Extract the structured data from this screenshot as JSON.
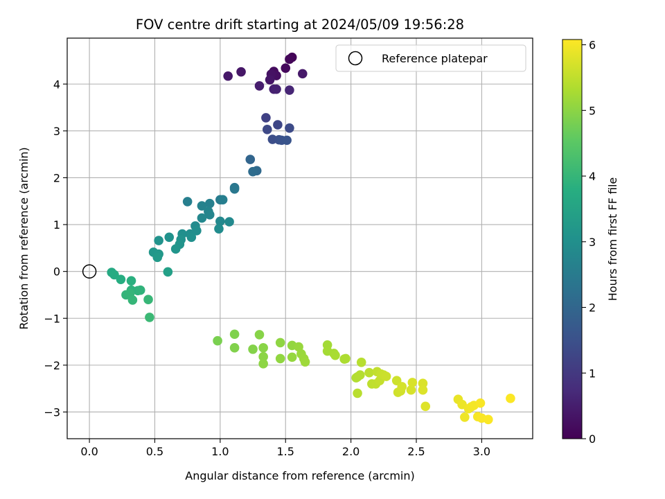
{
  "chart_data": {
    "type": "scatter",
    "title": "FOV centre drift starting at 2024/05/09 19:56:28",
    "xlabel": "Angular distance from reference (arcmin)",
    "ylabel": "Rotation from reference (arcmin)",
    "xlim": [
      -0.17,
      3.39
    ],
    "ylim": [
      -3.57,
      4.98
    ],
    "x_ticks": [
      0.0,
      0.5,
      1.0,
      1.5,
      2.0,
      2.5,
      3.0
    ],
    "x_tick_labels": [
      "0.0",
      "0.5",
      "1.0",
      "1.5",
      "2.0",
      "2.5",
      "3.0"
    ],
    "y_ticks": [
      -3,
      -2,
      -1,
      0,
      1,
      2,
      3,
      4
    ],
    "y_tick_labels": [
      "−3",
      "−2",
      "−1",
      "0",
      "1",
      "2",
      "3",
      "4"
    ],
    "grid": true,
    "colormap": "viridis",
    "colorbar": {
      "label": "Hours from first FF file",
      "range": [
        0,
        6.08
      ],
      "ticks": [
        0,
        1,
        2,
        3,
        4,
        5,
        6
      ],
      "tick_labels": [
        "0",
        "1",
        "2",
        "3",
        "4",
        "5",
        "6"
      ]
    },
    "legend": {
      "position": "top-right",
      "entries": [
        {
          "label": "Reference platepar",
          "marker": "open-circle"
        }
      ]
    },
    "reference_point": {
      "x": 0.0,
      "y": 0.0
    },
    "series": [
      {
        "points": [
          {
            "x": 1.55,
            "y": 4.57,
            "t": 0.05
          },
          {
            "x": 1.53,
            "y": 4.53,
            "t": 0.1
          },
          {
            "x": 1.5,
            "y": 4.34,
            "t": 0.15
          },
          {
            "x": 1.41,
            "y": 4.27,
            "t": 0.2
          },
          {
            "x": 1.43,
            "y": 4.18,
            "t": 0.25
          },
          {
            "x": 1.39,
            "y": 4.21,
            "t": 0.3
          },
          {
            "x": 1.38,
            "y": 4.09,
            "t": 0.35
          },
          {
            "x": 1.16,
            "y": 4.26,
            "t": 0.38
          },
          {
            "x": 1.06,
            "y": 4.17,
            "t": 0.4
          },
          {
            "x": 1.63,
            "y": 4.22,
            "t": 0.42
          },
          {
            "x": 1.3,
            "y": 3.96,
            "t": 0.5
          },
          {
            "x": 1.41,
            "y": 3.89,
            "t": 0.55
          },
          {
            "x": 1.43,
            "y": 3.89,
            "t": 0.58
          },
          {
            "x": 1.53,
            "y": 3.87,
            "t": 0.65
          },
          {
            "x": 1.35,
            "y": 3.28,
            "t": 1.2
          },
          {
            "x": 1.44,
            "y": 3.13,
            "t": 1.3
          },
          {
            "x": 1.36,
            "y": 3.03,
            "t": 1.35
          },
          {
            "x": 1.53,
            "y": 3.06,
            "t": 1.4
          },
          {
            "x": 1.4,
            "y": 2.82,
            "t": 1.45
          },
          {
            "x": 1.45,
            "y": 2.81,
            "t": 1.5
          },
          {
            "x": 1.47,
            "y": 2.8,
            "t": 1.55
          },
          {
            "x": 1.51,
            "y": 2.8,
            "t": 1.6
          },
          {
            "x": 1.23,
            "y": 2.39,
            "t": 2.0
          },
          {
            "x": 1.28,
            "y": 2.15,
            "t": 2.1
          },
          {
            "x": 1.25,
            "y": 2.13,
            "t": 2.15
          },
          {
            "x": 1.11,
            "y": 1.79,
            "t": 2.4
          },
          {
            "x": 1.11,
            "y": 1.76,
            "t": 2.45
          },
          {
            "x": 1.0,
            "y": 1.53,
            "t": 2.55
          },
          {
            "x": 1.02,
            "y": 1.53,
            "t": 2.6
          },
          {
            "x": 0.75,
            "y": 1.49,
            "t": 2.62
          },
          {
            "x": 0.92,
            "y": 1.45,
            "t": 2.65
          },
          {
            "x": 0.86,
            "y": 1.4,
            "t": 2.7
          },
          {
            "x": 0.91,
            "y": 1.28,
            "t": 2.75
          },
          {
            "x": 0.92,
            "y": 1.21,
            "t": 2.78
          },
          {
            "x": 0.86,
            "y": 1.14,
            "t": 2.82
          },
          {
            "x": 1.0,
            "y": 1.07,
            "t": 2.85
          },
          {
            "x": 1.07,
            "y": 1.06,
            "t": 2.88
          },
          {
            "x": 0.81,
            "y": 0.97,
            "t": 2.92
          },
          {
            "x": 0.99,
            "y": 0.91,
            "t": 2.95
          },
          {
            "x": 0.82,
            "y": 0.87,
            "t": 2.98
          },
          {
            "x": 0.77,
            "y": 0.8,
            "t": 3.0
          },
          {
            "x": 0.71,
            "y": 0.8,
            "t": 3.02
          },
          {
            "x": 0.78,
            "y": 0.73,
            "t": 3.05
          },
          {
            "x": 0.61,
            "y": 0.73,
            "t": 3.08
          },
          {
            "x": 0.7,
            "y": 0.68,
            "t": 3.1
          },
          {
            "x": 0.53,
            "y": 0.66,
            "t": 3.12
          },
          {
            "x": 0.69,
            "y": 0.58,
            "t": 3.15
          },
          {
            "x": 0.66,
            "y": 0.48,
            "t": 3.18
          },
          {
            "x": 0.49,
            "y": 0.41,
            "t": 3.22
          },
          {
            "x": 0.53,
            "y": 0.37,
            "t": 3.25
          },
          {
            "x": 0.52,
            "y": 0.3,
            "t": 3.3
          },
          {
            "x": 0.6,
            "y": -0.01,
            "t": 3.45
          },
          {
            "x": 0.17,
            "y": -0.02,
            "t": 3.7
          },
          {
            "x": 0.19,
            "y": -0.07,
            "t": 3.75
          },
          {
            "x": 0.24,
            "y": -0.17,
            "t": 3.8
          },
          {
            "x": 0.32,
            "y": -0.2,
            "t": 3.85
          },
          {
            "x": 0.32,
            "y": -0.4,
            "t": 3.9
          },
          {
            "x": 0.37,
            "y": -0.41,
            "t": 3.92
          },
          {
            "x": 0.39,
            "y": -0.4,
            "t": 3.95
          },
          {
            "x": 0.28,
            "y": -0.5,
            "t": 3.98
          },
          {
            "x": 0.31,
            "y": -0.47,
            "t": 4.0
          },
          {
            "x": 0.33,
            "y": -0.61,
            "t": 4.02
          },
          {
            "x": 0.45,
            "y": -0.6,
            "t": 4.05
          },
          {
            "x": 0.46,
            "y": -0.98,
            "t": 4.1
          },
          {
            "x": 0.98,
            "y": -1.48,
            "t": 4.85
          },
          {
            "x": 1.11,
            "y": -1.34,
            "t": 4.9
          },
          {
            "x": 1.11,
            "y": -1.63,
            "t": 4.92
          },
          {
            "x": 1.25,
            "y": -1.66,
            "t": 4.95
          },
          {
            "x": 1.3,
            "y": -1.35,
            "t": 4.98
          },
          {
            "x": 1.33,
            "y": -1.63,
            "t": 5.0
          },
          {
            "x": 1.33,
            "y": -1.82,
            "t": 5.02
          },
          {
            "x": 1.33,
            "y": -1.97,
            "t": 5.04
          },
          {
            "x": 1.46,
            "y": -1.52,
            "t": 5.06
          },
          {
            "x": 1.46,
            "y": -1.86,
            "t": 5.08
          },
          {
            "x": 1.55,
            "y": -1.58,
            "t": 5.1
          },
          {
            "x": 1.55,
            "y": -1.83,
            "t": 5.12
          },
          {
            "x": 1.6,
            "y": -1.61,
            "t": 5.14
          },
          {
            "x": 1.62,
            "y": -1.76,
            "t": 5.16
          },
          {
            "x": 1.64,
            "y": -1.86,
            "t": 5.18
          },
          {
            "x": 1.65,
            "y": -1.93,
            "t": 5.2
          },
          {
            "x": 1.82,
            "y": -1.57,
            "t": 5.25
          },
          {
            "x": 1.82,
            "y": -1.7,
            "t": 5.27
          },
          {
            "x": 1.87,
            "y": -1.75,
            "t": 5.29
          },
          {
            "x": 1.88,
            "y": -1.79,
            "t": 5.31
          },
          {
            "x": 1.95,
            "y": -1.87,
            "t": 5.33
          },
          {
            "x": 1.96,
            "y": -1.86,
            "t": 5.35
          },
          {
            "x": 2.04,
            "y": -2.27,
            "t": 5.38
          },
          {
            "x": 2.05,
            "y": -2.25,
            "t": 5.4
          },
          {
            "x": 2.07,
            "y": -2.21,
            "t": 5.42
          },
          {
            "x": 2.08,
            "y": -1.94,
            "t": 5.44
          },
          {
            "x": 2.05,
            "y": -2.6,
            "t": 5.46
          },
          {
            "x": 2.14,
            "y": -2.16,
            "t": 5.48
          },
          {
            "x": 2.16,
            "y": -2.4,
            "t": 5.5
          },
          {
            "x": 2.19,
            "y": -2.4,
            "t": 5.52
          },
          {
            "x": 2.2,
            "y": -2.14,
            "t": 5.54
          },
          {
            "x": 2.22,
            "y": -2.33,
            "t": 5.56
          },
          {
            "x": 2.23,
            "y": -2.19,
            "t": 5.58
          },
          {
            "x": 2.25,
            "y": -2.21,
            "t": 5.6
          },
          {
            "x": 2.27,
            "y": -2.24,
            "t": 5.62
          },
          {
            "x": 2.35,
            "y": -2.33,
            "t": 5.64
          },
          {
            "x": 2.36,
            "y": -2.58,
            "t": 5.66
          },
          {
            "x": 2.38,
            "y": -2.55,
            "t": 5.68
          },
          {
            "x": 2.39,
            "y": -2.46,
            "t": 5.7
          },
          {
            "x": 2.46,
            "y": -2.53,
            "t": 5.72
          },
          {
            "x": 2.47,
            "y": -2.37,
            "t": 5.74
          },
          {
            "x": 2.55,
            "y": -2.39,
            "t": 5.76
          },
          {
            "x": 2.55,
            "y": -2.53,
            "t": 5.78
          },
          {
            "x": 2.57,
            "y": -2.88,
            "t": 5.8
          },
          {
            "x": 2.82,
            "y": -2.73,
            "t": 5.9
          },
          {
            "x": 2.85,
            "y": -2.84,
            "t": 5.92
          },
          {
            "x": 2.87,
            "y": -3.11,
            "t": 5.94
          },
          {
            "x": 2.9,
            "y": -2.93,
            "t": 5.96
          },
          {
            "x": 2.92,
            "y": -2.89,
            "t": 5.98
          },
          {
            "x": 2.94,
            "y": -2.86,
            "t": 6.0
          },
          {
            "x": 2.97,
            "y": -3.1,
            "t": 6.02
          },
          {
            "x": 2.99,
            "y": -2.81,
            "t": 6.03
          },
          {
            "x": 3.0,
            "y": -3.13,
            "t": 6.04
          },
          {
            "x": 3.05,
            "y": -3.16,
            "t": 6.05
          },
          {
            "x": 3.22,
            "y": -2.71,
            "t": 6.06
          }
        ]
      }
    ]
  }
}
